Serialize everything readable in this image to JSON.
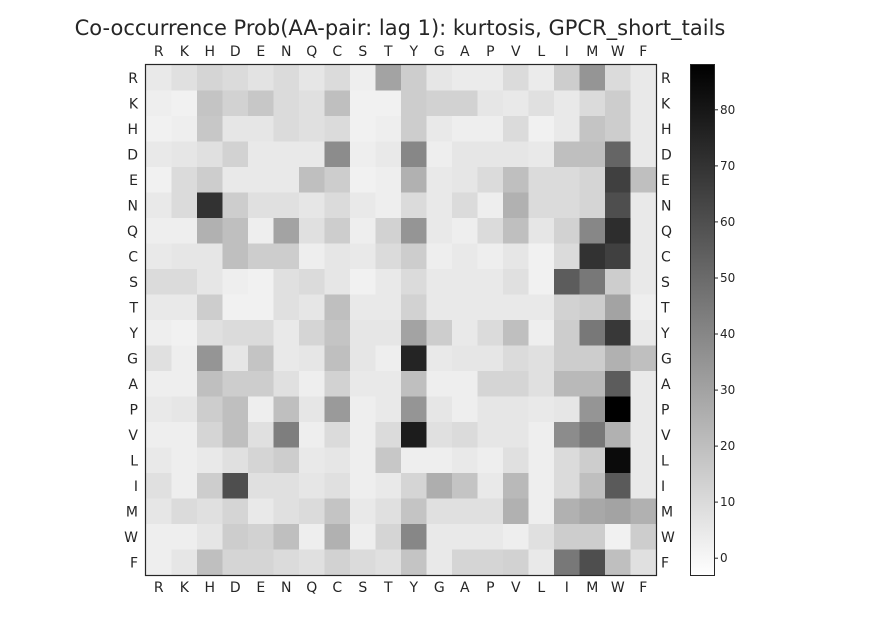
{
  "chart_data": {
    "type": "heatmap",
    "title": "Co-occurrence Prob(AA-pair: lag 1): kurtosis, GPCR_short_tails",
    "x_labels": [
      "R",
      "K",
      "H",
      "D",
      "E",
      "N",
      "Q",
      "C",
      "S",
      "T",
      "Y",
      "G",
      "A",
      "P",
      "V",
      "L",
      "I",
      "M",
      "W",
      "F"
    ],
    "y_labels": [
      "R",
      "K",
      "H",
      "D",
      "E",
      "N",
      "Q",
      "C",
      "S",
      "T",
      "Y",
      "G",
      "A",
      "P",
      "V",
      "L",
      "I",
      "M",
      "W",
      "F"
    ],
    "colorbar": {
      "min": -3,
      "max": 88,
      "ticks": [
        0,
        10,
        20,
        30,
        40,
        50,
        60,
        70,
        80
      ],
      "cmap": "gray_r"
    },
    "grid": false,
    "values": [
      [
        5,
        8,
        12,
        10,
        7,
        10,
        6,
        10,
        3,
        30,
        15,
        6,
        4,
        4,
        10,
        4,
        15,
        35,
        10,
        5
      ],
      [
        3,
        2,
        18,
        13,
        17,
        10,
        8,
        20,
        2,
        2,
        15,
        13,
        13,
        6,
        5,
        8,
        5,
        10,
        15,
        5
      ],
      [
        2,
        3,
        17,
        6,
        6,
        10,
        8,
        10,
        2,
        3,
        15,
        5,
        3,
        3,
        10,
        2,
        5,
        18,
        15,
        5
      ],
      [
        5,
        6,
        8,
        13,
        5,
        5,
        5,
        38,
        3,
        5,
        40,
        3,
        6,
        6,
        6,
        5,
        20,
        20,
        52,
        5
      ],
      [
        2,
        10,
        15,
        5,
        5,
        5,
        20,
        15,
        2,
        3,
        25,
        5,
        6,
        10,
        20,
        10,
        10,
        12,
        65,
        20
      ],
      [
        5,
        10,
        70,
        15,
        8,
        8,
        6,
        10,
        5,
        3,
        10,
        5,
        10,
        3,
        25,
        10,
        10,
        12,
        60,
        5
      ],
      [
        3,
        3,
        25,
        20,
        3,
        30,
        8,
        15,
        3,
        13,
        35,
        5,
        3,
        10,
        20,
        6,
        13,
        40,
        72,
        5
      ],
      [
        5,
        6,
        6,
        20,
        15,
        15,
        3,
        6,
        5,
        10,
        15,
        3,
        5,
        3,
        6,
        2,
        10,
        70,
        65,
        5
      ],
      [
        10,
        10,
        6,
        3,
        2,
        8,
        10,
        6,
        2,
        5,
        10,
        5,
        5,
        5,
        8,
        2,
        55,
        45,
        15,
        5
      ],
      [
        5,
        5,
        15,
        2,
        2,
        8,
        6,
        20,
        5,
        5,
        13,
        5,
        5,
        5,
        5,
        5,
        13,
        15,
        30,
        3
      ],
      [
        3,
        2,
        8,
        10,
        10,
        5,
        12,
        18,
        6,
        6,
        30,
        15,
        5,
        10,
        20,
        3,
        15,
        45,
        68,
        5
      ],
      [
        8,
        3,
        35,
        6,
        18,
        5,
        6,
        20,
        6,
        3,
        75,
        5,
        6,
        6,
        10,
        8,
        15,
        15,
        25,
        20
      ],
      [
        3,
        3,
        20,
        15,
        15,
        8,
        3,
        13,
        5,
        5,
        20,
        3,
        3,
        12,
        12,
        8,
        22,
        22,
        55,
        5
      ],
      [
        5,
        6,
        15,
        20,
        3,
        20,
        6,
        33,
        3,
        5,
        35,
        6,
        3,
        6,
        6,
        5,
        6,
        35,
        88,
        5
      ],
      [
        3,
        3,
        12,
        20,
        8,
        43,
        3,
        10,
        3,
        10,
        78,
        8,
        10,
        6,
        6,
        3,
        38,
        45,
        25,
        5
      ],
      [
        5,
        3,
        5,
        8,
        12,
        15,
        5,
        6,
        3,
        17,
        3,
        3,
        5,
        3,
        8,
        3,
        10,
        15,
        84,
        5
      ],
      [
        8,
        3,
        15,
        60,
        8,
        8,
        6,
        8,
        3,
        5,
        12,
        26,
        18,
        5,
        22,
        3,
        10,
        20,
        56,
        5
      ],
      [
        6,
        10,
        8,
        12,
        5,
        8,
        10,
        18,
        5,
        8,
        18,
        8,
        8,
        8,
        25,
        3,
        25,
        28,
        30,
        25
      ],
      [
        3,
        3,
        6,
        15,
        13,
        20,
        3,
        25,
        3,
        12,
        40,
        5,
        5,
        5,
        3,
        8,
        15,
        15,
        2,
        15
      ],
      [
        3,
        6,
        20,
        12,
        12,
        10,
        8,
        13,
        10,
        8,
        18,
        5,
        12,
        12,
        13,
        5,
        45,
        60,
        20,
        8
      ]
    ]
  }
}
